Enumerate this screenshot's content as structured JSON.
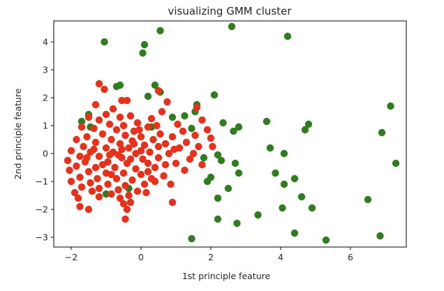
{
  "chart_data": {
    "type": "scatter",
    "title": "visualizing GMM cluster",
    "xlabel": "1st principle feature",
    "ylabel": "2nd principle feature",
    "xlim": [
      -2.5,
      7.6
    ],
    "ylim": [
      -3.35,
      4.75
    ],
    "x_ticks": [
      -2,
      0,
      2,
      4,
      6
    ],
    "y_ticks": [
      -3,
      -2,
      -1,
      0,
      1,
      2,
      3,
      4
    ],
    "x_tick_labels": [
      "−2",
      "0",
      "2",
      "4",
      "6"
    ],
    "y_tick_labels": [
      "−3",
      "−2",
      "−1",
      "0",
      "1",
      "2",
      "3",
      "4"
    ],
    "grid": false,
    "legend": "none",
    "series": [
      {
        "color": "#2f7d1e",
        "points": [
          [
            -1.05,
            4.0
          ],
          [
            0.1,
            3.9
          ],
          [
            0.55,
            4.4
          ],
          [
            0.05,
            3.6
          ],
          [
            2.6,
            4.55
          ],
          [
            4.2,
            4.2
          ],
          [
            -0.7,
            2.4
          ],
          [
            -0.6,
            2.45
          ],
          [
            0.4,
            2.45
          ],
          [
            0.55,
            2.2
          ],
          [
            0.2,
            2.05
          ],
          [
            1.6,
            1.75
          ],
          [
            1.55,
            1.5
          ],
          [
            2.1,
            2.1
          ],
          [
            2.35,
            1.1
          ],
          [
            2.65,
            0.8
          ],
          [
            2.8,
            0.95
          ],
          [
            3.6,
            1.15
          ],
          [
            4.8,
            1.05
          ],
          [
            4.7,
            0.85
          ],
          [
            6.9,
            0.75
          ],
          [
            7.15,
            1.7
          ],
          [
            7.3,
            -0.35
          ],
          [
            -1.7,
            1.15
          ],
          [
            -1.5,
            1.4
          ],
          [
            -1.45,
            0.95
          ],
          [
            0.3,
            0.95
          ],
          [
            0.9,
            1.3
          ],
          [
            1.25,
            1.35
          ],
          [
            1.45,
            0.9
          ],
          [
            1.8,
            -0.15
          ],
          [
            2.2,
            -0.05
          ],
          [
            2.3,
            -0.25
          ],
          [
            2.7,
            -0.35
          ],
          [
            2.8,
            -0.7
          ],
          [
            3.7,
            0.2
          ],
          [
            4.1,
            0.0
          ],
          [
            3.85,
            -0.7
          ],
          [
            4.1,
            -1.1
          ],
          [
            4.4,
            -0.9
          ],
          [
            1.9,
            -1.0
          ],
          [
            2.0,
            -0.85
          ],
          [
            2.5,
            -1.25
          ],
          [
            2.2,
            -1.6
          ],
          [
            4.6,
            -1.55
          ],
          [
            4.05,
            -1.95
          ],
          [
            4.9,
            -1.95
          ],
          [
            6.5,
            -1.65
          ],
          [
            2.2,
            -2.35
          ],
          [
            2.75,
            -2.5
          ],
          [
            3.35,
            -2.2
          ],
          [
            4.4,
            -2.85
          ],
          [
            5.3,
            -3.1
          ],
          [
            6.85,
            -2.95
          ],
          [
            1.45,
            -3.05
          ],
          [
            -1.0,
            -1.45
          ],
          [
            -0.35,
            -1.25
          ]
        ]
      },
      {
        "color": "#e8311b",
        "points": [
          [
            -1.2,
            2.5
          ],
          [
            -1.05,
            2.3
          ],
          [
            -0.55,
            1.9
          ],
          [
            -0.4,
            1.9
          ],
          [
            -1.3,
            1.75
          ],
          [
            -0.8,
            1.6
          ],
          [
            -1.0,
            1.4
          ],
          [
            -0.3,
            1.35
          ],
          [
            -0.6,
            1.3
          ],
          [
            -1.5,
            1.3
          ],
          [
            -1.2,
            1.2
          ],
          [
            -0.9,
            1.05
          ],
          [
            -0.5,
            1.0
          ],
          [
            -0.1,
            1.1
          ],
          [
            -1.7,
            0.95
          ],
          [
            -1.35,
            0.9
          ],
          [
            -0.7,
            0.85
          ],
          [
            -0.2,
            0.8
          ],
          [
            0.2,
            0.95
          ],
          [
            -1.1,
            0.7
          ],
          [
            -0.45,
            0.65
          ],
          [
            0.0,
            0.6
          ],
          [
            -1.55,
            0.6
          ],
          [
            -1.85,
            0.5
          ],
          [
            -0.85,
            0.5
          ],
          [
            -0.25,
            0.45
          ],
          [
            0.35,
            0.5
          ],
          [
            -1.3,
            0.4
          ],
          [
            -0.6,
            0.35
          ],
          [
            0.1,
            0.3
          ],
          [
            -1.65,
            0.25
          ],
          [
            -1.0,
            0.2
          ],
          [
            -0.35,
            0.2
          ],
          [
            0.5,
            0.25
          ],
          [
            -2.0,
            0.1
          ],
          [
            -1.45,
            0.05
          ],
          [
            -0.8,
            0.05
          ],
          [
            -0.15,
            0.0
          ],
          [
            0.25,
            0.05
          ],
          [
            -1.75,
            -0.1
          ],
          [
            -1.2,
            -0.1
          ],
          [
            -0.55,
            -0.15
          ],
          [
            0.05,
            -0.2
          ],
          [
            -2.1,
            -0.25
          ],
          [
            -1.6,
            -0.3
          ],
          [
            -0.95,
            -0.3
          ],
          [
            -0.4,
            -0.35
          ],
          [
            0.2,
            -0.35
          ],
          [
            -1.85,
            -0.45
          ],
          [
            -1.3,
            -0.5
          ],
          [
            -0.75,
            -0.5
          ],
          [
            -0.15,
            -0.55
          ],
          [
            0.4,
            -0.5
          ],
          [
            -2.05,
            -0.6
          ],
          [
            -1.5,
            -0.65
          ],
          [
            -1.0,
            -0.7
          ],
          [
            -0.5,
            -0.7
          ],
          [
            0.0,
            -0.75
          ],
          [
            -1.75,
            -0.85
          ],
          [
            -1.25,
            -0.9
          ],
          [
            -0.7,
            -0.9
          ],
          [
            -0.25,
            -0.95
          ],
          [
            0.3,
            -0.9
          ],
          [
            -2.0,
            -1.0
          ],
          [
            -1.45,
            -1.05
          ],
          [
            -0.95,
            -1.1
          ],
          [
            -0.45,
            -1.15
          ],
          [
            0.1,
            -1.1
          ],
          [
            -1.7,
            -1.2
          ],
          [
            -1.2,
            -1.25
          ],
          [
            -0.65,
            -1.3
          ],
          [
            -0.1,
            -1.35
          ],
          [
            -1.9,
            -1.4
          ],
          [
            -1.4,
            -1.35
          ],
          [
            -0.85,
            -1.45
          ],
          [
            -0.35,
            -1.5
          ],
          [
            -1.8,
            -1.6
          ],
          [
            -1.2,
            -1.55
          ],
          [
            -0.6,
            -1.6
          ],
          [
            -1.75,
            -1.9
          ],
          [
            -0.5,
            -1.8
          ],
          [
            -0.3,
            -1.75
          ],
          [
            -1.5,
            -2.0
          ],
          [
            -0.4,
            -2.0
          ],
          [
            -0.45,
            -2.35
          ],
          [
            -0.9,
            -0.05
          ],
          [
            -1.1,
            -0.4
          ],
          [
            -0.3,
            -0.2
          ],
          [
            0.0,
            0.1
          ],
          [
            -0.65,
            -0.05
          ],
          [
            -1.55,
            -0.15
          ],
          [
            -0.85,
            -0.75
          ],
          [
            -0.55,
            0.15
          ],
          [
            -1.35,
            0.15
          ],
          [
            -0.2,
            0.35
          ],
          [
            0.3,
            1.25
          ],
          [
            0.45,
            1.0
          ],
          [
            0.6,
            1.5
          ],
          [
            0.75,
            1.85
          ],
          [
            0.5,
            2.25
          ],
          [
            0.55,
            0.7
          ],
          [
            0.7,
            0.35
          ],
          [
            0.8,
            0.0
          ],
          [
            0.9,
            0.6
          ],
          [
            1.05,
            1.05
          ],
          [
            1.2,
            0.8
          ],
          [
            1.3,
            0.4
          ],
          [
            1.1,
            0.2
          ],
          [
            1.55,
            0.65
          ],
          [
            1.75,
            1.2
          ],
          [
            1.9,
            0.85
          ],
          [
            2.05,
            0.25
          ],
          [
            1.4,
            -0.2
          ],
          [
            1.75,
            -0.4
          ],
          [
            1.65,
            0.25
          ],
          [
            0.5,
            -0.15
          ],
          [
            0.7,
            -0.4
          ],
          [
            0.65,
            -0.8
          ],
          [
            0.85,
            -1.1
          ],
          [
            0.95,
            0.15
          ],
          [
            1.25,
            -0.6
          ],
          [
            1.0,
            -0.35
          ],
          [
            0.4,
            -1.0
          ],
          [
            0.15,
            -1.4
          ],
          [
            0.9,
            -1.75
          ],
          [
            1.6,
            1.65
          ],
          [
            1.5,
            0.0
          ],
          [
            2.0,
            0.55
          ],
          [
            -0.05,
            0.85
          ],
          [
            0.2,
            -0.65
          ]
        ]
      }
    ]
  }
}
